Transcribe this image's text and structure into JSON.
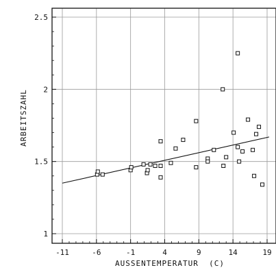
{
  "chart_data": {
    "type": "scatter",
    "title": "",
    "xlabel": "AUSSENTEMPERATUR  (C)",
    "ylabel": "ARBEITSZAHL",
    "xlim": [
      -13,
      21
    ],
    "ylim": [
      0.95,
      2.55
    ],
    "xticks": [
      -11,
      -6,
      -1,
      4,
      9,
      14,
      19
    ],
    "xtick_labels": [
      "-11",
      "-6",
      "-1",
      "4",
      "9",
      "14",
      "19"
    ],
    "yticks": [
      1,
      1.5,
      2,
      2.5
    ],
    "ytick_labels": [
      "1",
      "1.5",
      "2",
      "2.5"
    ],
    "grid": true,
    "colors": {
      "ink": "#111111",
      "grid": "#9a9a9a"
    },
    "trendline": {
      "x": [
        -11,
        19.3
      ],
      "y": [
        1.35,
        1.67
      ]
    },
    "points": [
      {
        "x": -5.9,
        "y": 1.41
      },
      {
        "x": -5.8,
        "y": 1.43
      },
      {
        "x": -5.1,
        "y": 1.41
      },
      {
        "x": -1.0,
        "y": 1.44
      },
      {
        "x": -0.9,
        "y": 1.46
      },
      {
        "x": 0.9,
        "y": 1.48
      },
      {
        "x": 1.4,
        "y": 1.42
      },
      {
        "x": 1.5,
        "y": 1.44
      },
      {
        "x": 1.9,
        "y": 1.48
      },
      {
        "x": 2.6,
        "y": 1.47
      },
      {
        "x": 3.4,
        "y": 1.47
      },
      {
        "x": 3.4,
        "y": 1.39
      },
      {
        "x": 3.4,
        "y": 1.64
      },
      {
        "x": 4.9,
        "y": 1.49
      },
      {
        "x": 5.6,
        "y": 1.59
      },
      {
        "x": 6.7,
        "y": 1.65
      },
      {
        "x": 8.6,
        "y": 1.78
      },
      {
        "x": 8.6,
        "y": 1.46
      },
      {
        "x": 10.3,
        "y": 1.52
      },
      {
        "x": 10.3,
        "y": 1.5
      },
      {
        "x": 11.2,
        "y": 1.58
      },
      {
        "x": 12.5,
        "y": 2.0
      },
      {
        "x": 12.6,
        "y": 1.47
      },
      {
        "x": 13.0,
        "y": 1.53
      },
      {
        "x": 14.1,
        "y": 1.7
      },
      {
        "x": 14.7,
        "y": 2.25
      },
      {
        "x": 14.7,
        "y": 1.6
      },
      {
        "x": 14.9,
        "y": 1.5
      },
      {
        "x": 15.4,
        "y": 1.57
      },
      {
        "x": 16.2,
        "y": 1.79
      },
      {
        "x": 16.9,
        "y": 1.58
      },
      {
        "x": 17.1,
        "y": 1.4
      },
      {
        "x": 17.4,
        "y": 1.69
      },
      {
        "x": 17.8,
        "y": 1.74
      },
      {
        "x": 18.3,
        "y": 1.34
      }
    ]
  }
}
